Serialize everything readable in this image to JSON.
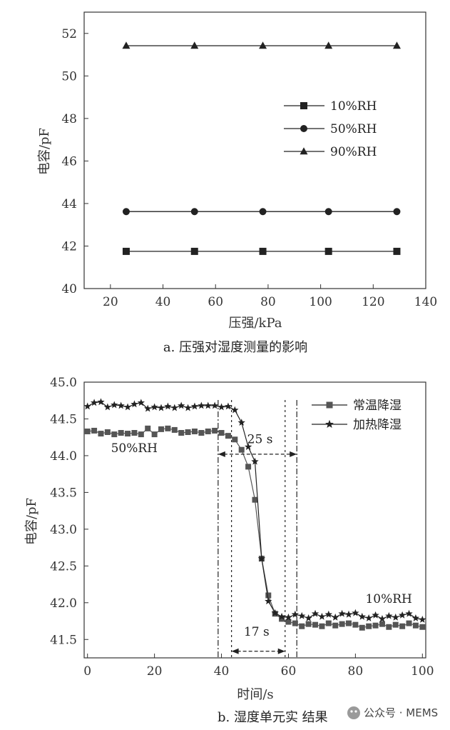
{
  "chart_data": [
    {
      "type": "line",
      "caption": "a. 压强对湿度测量的影响",
      "xlabel": "压强/kPa",
      "ylabel": "电容/pF",
      "xlim": [
        10,
        140
      ],
      "ylim": [
        40,
        53
      ],
      "xticks": [
        20,
        40,
        60,
        80,
        100,
        120,
        140
      ],
      "yticks": [
        40,
        42,
        44,
        46,
        48,
        50,
        52
      ],
      "x": [
        26,
        52,
        78,
        103,
        129
      ],
      "legend_position": "upper-right",
      "series": [
        {
          "name": "10%RH",
          "marker": "square",
          "values": [
            41.75,
            41.75,
            41.75,
            41.75,
            41.75
          ]
        },
        {
          "name": "50%RH",
          "marker": "circle",
          "values": [
            43.62,
            43.62,
            43.62,
            43.62,
            43.62
          ]
        },
        {
          "name": "90%RH",
          "marker": "triangle",
          "values": [
            51.42,
            51.42,
            51.42,
            51.42,
            51.42
          ]
        }
      ]
    },
    {
      "type": "line",
      "caption": "b. 湿度单元实    结果",
      "xlabel": "时间/s",
      "ylabel": "电容/pF",
      "xlim": [
        -1,
        101
      ],
      "ylim": [
        41.25,
        45.0
      ],
      "xticks": [
        0,
        20,
        40,
        60,
        80,
        100
      ],
      "yticks": [
        41.5,
        42.0,
        42.5,
        43.0,
        43.5,
        44.0,
        44.5,
        45.0
      ],
      "ytick_labels": [
        "41.5",
        "42.0",
        "42.5",
        "43.0",
        "43.5",
        "44.0",
        "44.5",
        "45.0"
      ],
      "legend_position": "upper-right",
      "series": [
        {
          "name": "常温降湿",
          "marker": "square",
          "x": [
            0,
            2,
            4,
            6,
            8,
            10,
            12,
            14,
            16,
            18,
            20,
            22,
            24,
            26,
            28,
            30,
            32,
            34,
            36,
            38,
            40,
            42,
            44,
            46,
            48,
            50,
            52,
            54,
            56,
            58,
            60,
            62,
            64,
            66,
            68,
            70,
            72,
            74,
            76,
            78,
            80,
            82,
            84,
            86,
            88,
            90,
            92,
            94,
            96,
            98,
            100
          ],
          "values": [
            44.33,
            44.34,
            44.3,
            44.32,
            44.29,
            44.31,
            44.3,
            44.31,
            44.29,
            44.37,
            44.29,
            44.36,
            44.37,
            44.35,
            44.31,
            44.32,
            44.33,
            44.31,
            44.33,
            44.34,
            44.31,
            44.27,
            44.22,
            44.08,
            43.85,
            43.4,
            42.6,
            42.1,
            41.85,
            41.78,
            41.74,
            41.72,
            41.68,
            41.71,
            41.7,
            41.68,
            41.72,
            41.69,
            41.71,
            41.72,
            41.7,
            41.66,
            41.68,
            41.69,
            41.71,
            41.67,
            41.7,
            41.68,
            41.72,
            41.69,
            41.67
          ]
        },
        {
          "name": "加热降湿",
          "marker": "star",
          "x": [
            0,
            2,
            4,
            6,
            8,
            10,
            12,
            14,
            16,
            18,
            20,
            22,
            24,
            26,
            28,
            30,
            32,
            34,
            36,
            38,
            40,
            42,
            44,
            46,
            48,
            50,
            52,
            54,
            56,
            58,
            60,
            62,
            64,
            66,
            68,
            70,
            72,
            74,
            76,
            78,
            80,
            82,
            84,
            86,
            88,
            90,
            92,
            94,
            96,
            98,
            100
          ],
          "values": [
            44.67,
            44.72,
            44.73,
            44.66,
            44.69,
            44.68,
            44.66,
            44.7,
            44.72,
            44.64,
            44.66,
            44.65,
            44.67,
            44.65,
            44.68,
            44.65,
            44.67,
            44.68,
            44.68,
            44.68,
            44.66,
            44.67,
            44.62,
            44.45,
            44.12,
            43.92,
            42.6,
            42.02,
            41.86,
            41.81,
            41.8,
            41.84,
            41.82,
            41.79,
            41.85,
            41.81,
            41.84,
            41.8,
            41.85,
            41.84,
            41.86,
            41.81,
            41.79,
            41.83,
            41.78,
            41.82,
            41.8,
            41.83,
            41.85,
            41.79,
            41.77
          ]
        }
      ],
      "annotations": [
        {
          "text": "50%RH",
          "x": 7,
          "y": 44.05
        },
        {
          "text": "10%RH",
          "x": 83,
          "y": 42.0
        },
        {
          "text": "25 s",
          "x": 51.5,
          "y": 44.17,
          "span": [
            39,
            62.5
          ],
          "arrow_y": 44.02
        },
        {
          "text": "17 s",
          "x": 50.5,
          "y": 41.55,
          "span": [
            43,
            59
          ],
          "arrow_y": 41.34
        }
      ],
      "reference_lines": [
        {
          "x": 39,
          "style": "dash-dot"
        },
        {
          "x": 62.5,
          "style": "dash-dot"
        },
        {
          "x": 43,
          "style": "dotted"
        },
        {
          "x": 59,
          "style": "dotted"
        }
      ]
    }
  ],
  "watermark": "公众号 · MEMS"
}
